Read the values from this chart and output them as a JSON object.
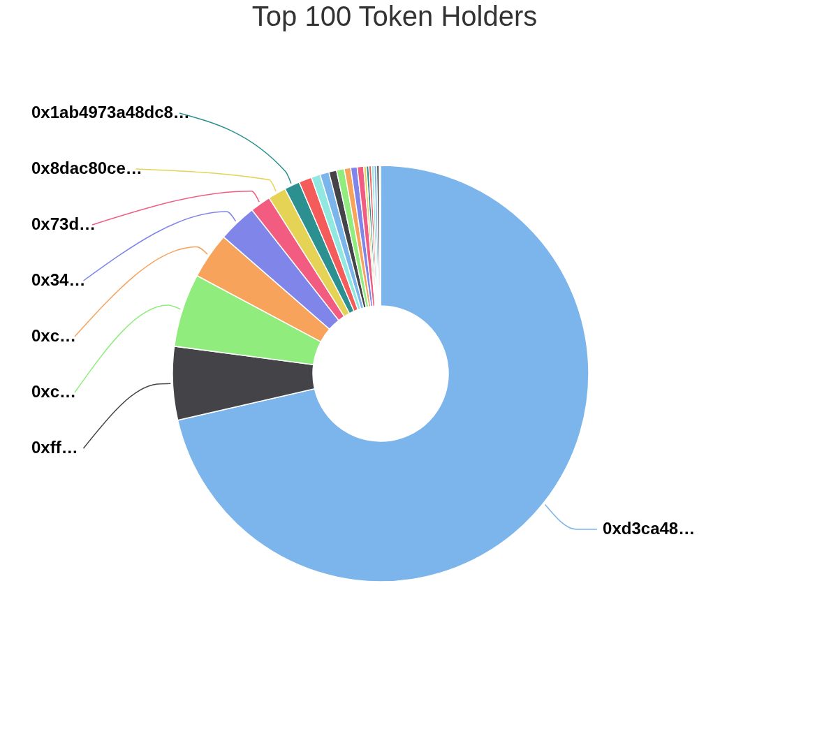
{
  "chart_data": {
    "type": "donut",
    "title": "Top 100 Token Holders",
    "categories": [
      "0xd3ca48…",
      "0xff…",
      "0xc…",
      "0xc…",
      "0x34…",
      "0x73d…",
      "0x8dac80ce…",
      "0x1ab4973a48dc8…",
      null,
      null,
      null,
      null,
      null,
      null,
      null,
      null,
      null,
      null,
      null,
      null,
      null,
      null,
      null
    ],
    "values": [
      71.4,
      5.7,
      5.7,
      3.6,
      3.0,
      1.6,
      1.4,
      1.2,
      1.0,
      0.7,
      0.7,
      0.6,
      0.6,
      0.5,
      0.5,
      0.5,
      0.2,
      0.2,
      0.2,
      0.2,
      0.2,
      0.2,
      0.1
    ],
    "colors": [
      "#7cb5ec",
      "#434348",
      "#90ed7d",
      "#f7a35c",
      "#8085e9",
      "#f15c80",
      "#e4d354",
      "#2b908f",
      "#f45b5b",
      "#91e8e1",
      "#7cb5ec",
      "#434348",
      "#90ed7d",
      "#f7a35c",
      "#8085e9",
      "#f15c80",
      "#e4d354",
      "#2b908f",
      "#f45b5b",
      "#91e8e1",
      "#7cb5ec",
      "#434348",
      "#90ed7d"
    ],
    "legend": false
  }
}
